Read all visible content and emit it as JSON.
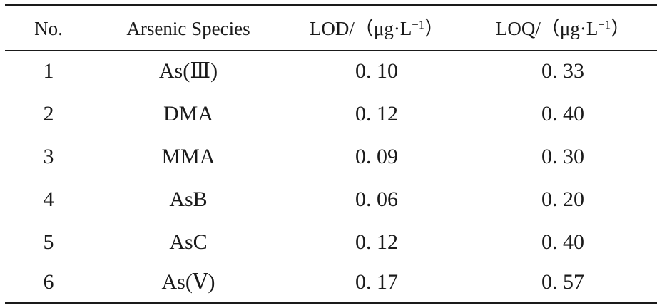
{
  "table": {
    "headers": {
      "no": "No.",
      "species": "Arsenic Species",
      "lod_prefix": "LOD/（μg·L",
      "loq_prefix": "LOQ/（μg·L",
      "unit_exponent": "−1",
      "unit_suffix": "）"
    },
    "rows": [
      {
        "no": "1",
        "species": "As(Ⅲ)",
        "lod": "0. 10",
        "loq": "0. 33"
      },
      {
        "no": "2",
        "species": "DMA",
        "lod": "0. 12",
        "loq": "0. 40"
      },
      {
        "no": "3",
        "species": "MMA",
        "lod": "0. 09",
        "loq": "0. 30"
      },
      {
        "no": "4",
        "species": "AsB",
        "lod": "0. 06",
        "loq": "0. 20"
      },
      {
        "no": "5",
        "species": "AsC",
        "lod": "0. 12",
        "loq": "0. 40"
      },
      {
        "no": "6",
        "species": "As(Ⅴ)",
        "lod": "0. 17",
        "loq": "0. 57"
      }
    ]
  }
}
